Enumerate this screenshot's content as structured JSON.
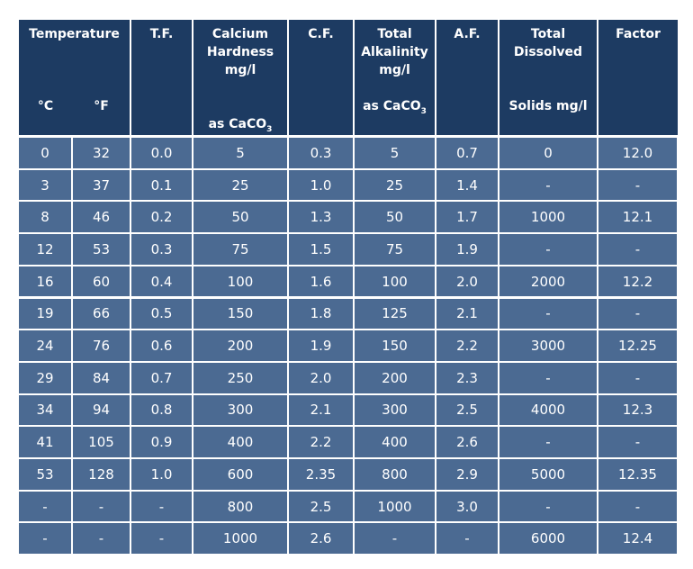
{
  "header": {
    "temperature": "Temperature",
    "celsius": "°C",
    "fahrenheit": "°F",
    "columns": [
      {
        "lines": [
          "T.F."
        ]
      },
      {
        "lines": [
          "Calcium",
          "Hardness",
          "mg/l"
        ],
        "note": "as CaCO",
        "note_sub": "3"
      },
      {
        "lines": [
          "C.F."
        ]
      },
      {
        "lines": [
          "Total",
          "Alkalinity",
          "mg/l"
        ],
        "note": "as CaCO",
        "note_sub": "3"
      },
      {
        "lines": [
          "A.F."
        ]
      },
      {
        "lines": [
          "Total",
          "Dissolved"
        ],
        "note": "Solids mg/l"
      },
      {
        "lines": [
          "Factor"
        ]
      }
    ]
  },
  "table": {
    "rows": [
      [
        "0",
        "32",
        "0.0",
        "5",
        "0.3",
        "5",
        "0.7",
        "0",
        "12.0"
      ],
      [
        "3",
        "37",
        "0.1",
        "25",
        "1.0",
        "25",
        "1.4",
        "-",
        "-"
      ],
      [
        "8",
        "46",
        "0.2",
        "50",
        "1.3",
        "50",
        "1.7",
        "1000",
        "12.1"
      ],
      [
        "12",
        "53",
        "0.3",
        "75",
        "1.5",
        "75",
        "1.9",
        "-",
        "-"
      ],
      [
        "16",
        "60",
        "0.4",
        "100",
        "1.6",
        "100",
        "2.0",
        "2000",
        "12.2"
      ],
      [
        "19",
        "66",
        "0.5",
        "150",
        "1.8",
        "125",
        "2.1",
        "-",
        "-"
      ],
      [
        "24",
        "76",
        "0.6",
        "200",
        "1.9",
        "150",
        "2.2",
        "3000",
        "12.25"
      ],
      [
        "29",
        "84",
        "0.7",
        "250",
        "2.0",
        "200",
        "2.3",
        "-",
        "-"
      ],
      [
        "34",
        "94",
        "0.8",
        "300",
        "2.1",
        "300",
        "2.5",
        "4000",
        "12.3"
      ],
      [
        "41",
        "105",
        "0.9",
        "400",
        "2.2",
        "400",
        "2.6",
        "-",
        "-"
      ],
      [
        "53",
        "128",
        "1.0",
        "600",
        "2.35",
        "800",
        "2.9",
        "5000",
        "12.35"
      ],
      [
        "-",
        "-",
        "-",
        "800",
        "2.5",
        "1000",
        "3.0",
        "-",
        "-"
      ],
      [
        "-",
        "-",
        "-",
        "1000",
        "2.6",
        "-",
        "-",
        "6000",
        "12.4"
      ]
    ]
  }
}
